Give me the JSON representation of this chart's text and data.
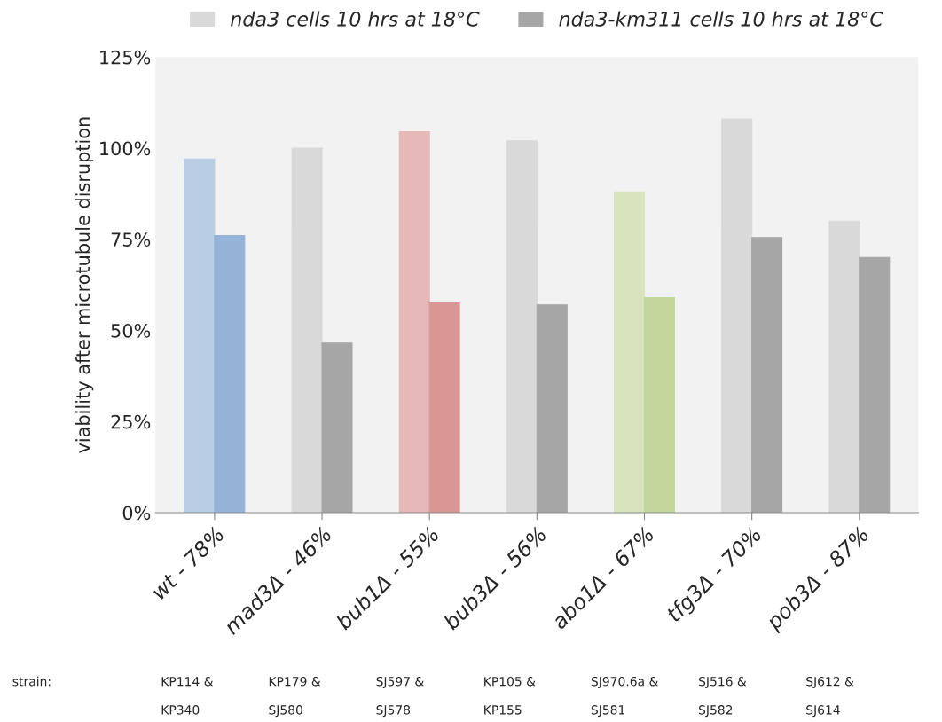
{
  "chart_data": {
    "type": "bar",
    "ylabel": "viability after microtubule disruption",
    "categories": [
      "wt - 78%",
      "mad3Δ - 46%",
      "bub1Δ - 55%",
      "bub3Δ - 56%",
      "abo1Δ - 67%",
      "tfg3Δ - 70%",
      "pob3Δ - 87%"
    ],
    "series": [
      {
        "name": "nda3 cells 10 hrs at 18°C",
        "color": "#d9d9d9",
        "colors": [
          "#b9cde5",
          "#d9d9d9",
          "#e6b9b8",
          "#d9d9d9",
          "#d7e4bd",
          "#d9d9d9",
          "#d9d9d9"
        ],
        "values": [
          97,
          100,
          104.5,
          102,
          88,
          108,
          80
        ]
      },
      {
        "name": "nda3-km311 cells 10 hrs at 18°C",
        "color": "#a6a6a6",
        "colors": [
          "#95b3d7",
          "#a6a6a6",
          "#d99694",
          "#a6a6a6",
          "#c3d69b",
          "#a6a6a6",
          "#a6a6a6"
        ],
        "values": [
          76,
          46.5,
          57.5,
          57,
          59,
          75.5,
          70
        ]
      }
    ],
    "ylim": [
      0,
      125
    ],
    "yticks": [
      {
        "value": 0,
        "label": "0%"
      },
      {
        "value": 25,
        "label": "25%"
      },
      {
        "value": 50,
        "label": "50%"
      },
      {
        "value": 75,
        "label": "75%"
      },
      {
        "value": 100,
        "label": "100%"
      },
      {
        "value": 125,
        "label": "125%"
      }
    ],
    "grid": false,
    "legend": "top",
    "annotations": [
      "strain:",
      "KP114 &\n\nKP340",
      "KP179 &\n\nSJ580",
      "SJ597 &\n\nSJ578",
      "KP105 &\n\nKP155",
      "SJ970.6a &\n\nSJ581",
      "SJ516 &\n\nSJ582",
      "SJ612 &\n\nSJ614"
    ]
  }
}
